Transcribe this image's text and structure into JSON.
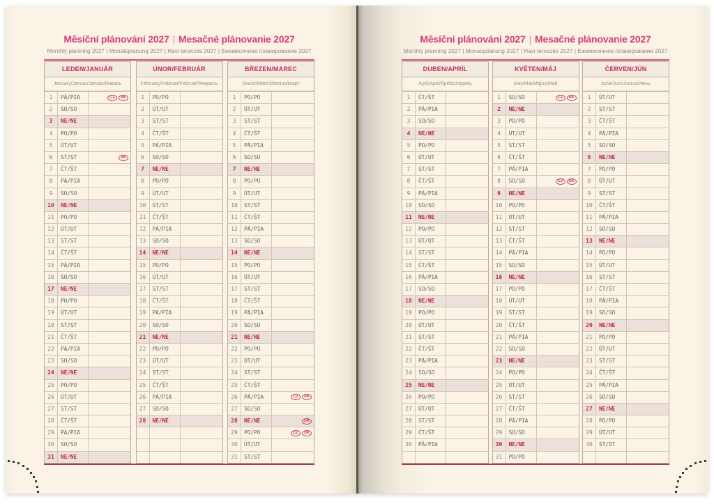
{
  "header": {
    "title_cz": "Měsíční plánování 2027",
    "title_separator": "|",
    "title_sk": "Mesačné plánovanie 2027",
    "subtitle": "Monthly planning 2027 | Monatsplanung 2027 | Havi tervezés 2027 | Ежемесячное планирование 2027"
  },
  "colors": {
    "paper": "#faf3e6",
    "title_magenta": "#d63c75",
    "month_header_crimson": "#c22958",
    "sunday_text": "#c0284e",
    "sunday_row_bg": "#ece0da",
    "table_border": "#bcab97",
    "title_rule": "#cf4e78",
    "bottom_rule": "#a63a5a",
    "badge_outline": "#c43a5e"
  },
  "pages": {
    "left": {
      "months": [
        {
          "id": "leden-januar",
          "name": "LEDEN/JANUÁR",
          "languages": "January/Januar/Január/Январь",
          "rows": 31,
          "days": [
            "PÁ/PIA",
            "SO/SO",
            "NE/NE",
            "PO/PO",
            "ÚT/UT",
            "ST/ST",
            "ČT/ŠT",
            "PÁ/PIA",
            "SO/SO",
            "NE/NE",
            "PO/PO",
            "ÚT/UT",
            "ST/ST",
            "ČT/ŠT",
            "PÁ/PIA",
            "SO/SO",
            "NE/NE",
            "PO/PO",
            "ÚT/UT",
            "ST/ST",
            "ČT/ŠT",
            "PÁ/PIA",
            "SO/SO",
            "NE/NE",
            "PO/PO",
            "ÚT/UT",
            "ST/ST",
            "ČT/ŠT",
            "PÁ/PIA",
            "SO/SO",
            "NE/NE"
          ],
          "badges": {
            "1": [
              "CZ",
              "SK"
            ],
            "6": [
              "SK"
            ]
          }
        },
        {
          "id": "unor-februar",
          "name": "ÚNOR/FEBRUÁR",
          "languages": "February/Februar/Február/Февраль",
          "rows": 31,
          "days": [
            "PO/PO",
            "ÚT/UT",
            "ST/ST",
            "ČT/ŠT",
            "PÁ/PIA",
            "SO/SO",
            "NE/NE",
            "PO/PO",
            "ÚT/UT",
            "ST/ST",
            "ČT/ŠT",
            "PÁ/PIA",
            "SO/SO",
            "NE/NE",
            "PO/PO",
            "ÚT/UT",
            "ST/ST",
            "ČT/ŠT",
            "PÁ/PIA",
            "SO/SO",
            "NE/NE",
            "PO/PO",
            "ÚT/UT",
            "ST/ST",
            "ČT/ŠT",
            "PÁ/PIA",
            "SO/SO",
            "NE/NE"
          ],
          "badges": {}
        },
        {
          "id": "brezen-marec",
          "name": "BŘEZEN/MAREC",
          "languages": "March/März/Március/Март",
          "rows": 31,
          "days": [
            "PO/PO",
            "ÚT/UT",
            "ST/ST",
            "ČT/ŠT",
            "PÁ/PIA",
            "SO/SO",
            "NE/NE",
            "PO/PO",
            "ÚT/UT",
            "ST/ST",
            "ČT/ŠT",
            "PÁ/PIA",
            "SO/SO",
            "NE/NE",
            "PO/PO",
            "ÚT/UT",
            "ST/ST",
            "ČT/ŠT",
            "PÁ/PIA",
            "SO/SO",
            "NE/NE",
            "PO/PO",
            "ÚT/UT",
            "ST/ST",
            "ČT/ŠT",
            "PÁ/PIA",
            "SO/SO",
            "NE/NE",
            "PO/PO",
            "ÚT/UT",
            "ST/ST"
          ],
          "badges": {
            "26": [
              "CZ",
              "SK"
            ],
            "28": [
              "SK"
            ],
            "29": [
              "CZ",
              "SK"
            ]
          }
        }
      ]
    },
    "right": {
      "months": [
        {
          "id": "duben-april",
          "name": "DUBEN/APRÍL",
          "languages": "April/April/Április/Апрель",
          "rows": 31,
          "days": [
            "ČT/ŠT",
            "PÁ/PIA",
            "SO/SO",
            "NE/NE",
            "PO/PO",
            "ÚT/UT",
            "ST/ST",
            "ČT/ŠT",
            "PÁ/PIA",
            "SO/SO",
            "NE/NE",
            "PO/PO",
            "ÚT/UT",
            "ST/ST",
            "ČT/ŠT",
            "PÁ/PIA",
            "SO/SO",
            "NE/NE",
            "PO/PO",
            "ÚT/UT",
            "ST/ST",
            "ČT/ŠT",
            "PÁ/PIA",
            "SO/SO",
            "NE/NE",
            "PO/PO",
            "ÚT/UT",
            "ST/ST",
            "ČT/ŠT",
            "PÁ/PIA"
          ],
          "badges": {}
        },
        {
          "id": "kveten-maj",
          "name": "KVĚTEN/MÁJ",
          "languages": "May/Mai/Május/Май",
          "rows": 31,
          "days": [
            "SO/SO",
            "NE/NE",
            "PO/PO",
            "ÚT/UT",
            "ST/ST",
            "ČT/ŠT",
            "PÁ/PIA",
            "SO/SO",
            "NE/NE",
            "PO/PO",
            "ÚT/UT",
            "ST/ST",
            "ČT/ŠT",
            "PÁ/PIA",
            "SO/SO",
            "NE/NE",
            "PO/PO",
            "ÚT/UT",
            "ST/ST",
            "ČT/ŠT",
            "PÁ/PIA",
            "SO/SO",
            "NE/NE",
            "PO/PO",
            "ÚT/UT",
            "ST/ST",
            "ČT/ŠT",
            "PÁ/PIA",
            "SO/SO",
            "NE/NE",
            "PO/PO"
          ],
          "badges": {
            "1": [
              "CZ",
              "SK"
            ],
            "8": [
              "CZ",
              "SK"
            ]
          }
        },
        {
          "id": "cerven-jun",
          "name": "ČERVEN/JÚN",
          "languages": "June/Juni/Június/Июнь",
          "rows": 31,
          "days": [
            "ÚT/UT",
            "ST/ST",
            "ČT/ŠT",
            "PÁ/PIA",
            "SO/SO",
            "NE/NE",
            "PO/PO",
            "ÚT/UT",
            "ST/ST",
            "ČT/ŠT",
            "PÁ/PIA",
            "SO/SO",
            "NE/NE",
            "PO/PO",
            "ÚT/UT",
            "ST/ST",
            "ČT/ŠT",
            "PÁ/PIA",
            "SO/SO",
            "NE/NE",
            "PO/PO",
            "ÚT/UT",
            "ST/ST",
            "ČT/ŠT",
            "PÁ/PIA",
            "SO/SO",
            "NE/NE",
            "PO/PO",
            "ÚT/UT",
            "ST/ST"
          ],
          "badges": {}
        }
      ]
    }
  }
}
